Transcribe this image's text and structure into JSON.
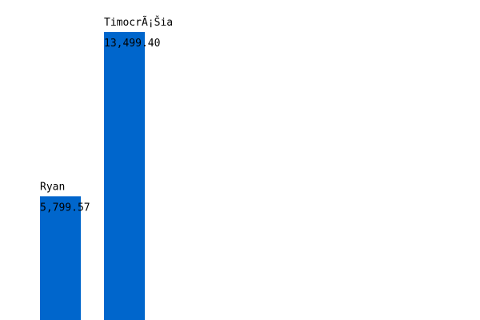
{
  "chart_data": {
    "type": "bar",
    "categories": [
      "Ryan",
      "TimocrÃ¡Šia"
    ],
    "values": [
      5799.57,
      13499.4
    ],
    "value_labels": [
      "5,799.57",
      "13,499.40"
    ],
    "title": "",
    "xlabel": "",
    "ylabel": "",
    "ylim": [
      0,
      15000
    ],
    "grid": false,
    "legend": "none",
    "bar_color": "#0066cc",
    "text_color": "#000000",
    "background": "#ffffff"
  }
}
